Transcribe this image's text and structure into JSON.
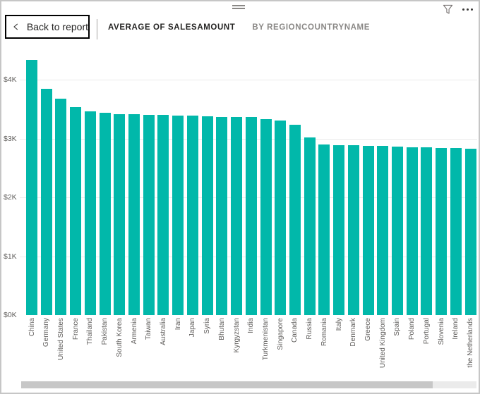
{
  "header": {
    "back_button_label": "Back to report",
    "title_primary": "AVERAGE OF SALESAMOUNT",
    "title_secondary": "BY REGIONCOUNTRYNAME"
  },
  "icons": {
    "drag_handle": "drag-handle-icon",
    "filter": "filter-icon",
    "more_options": "more-options-icon",
    "back_chevron": "chevron-left-icon"
  },
  "colors": {
    "bar": "#01B8AA",
    "axis_text": "#605E5C",
    "gridline": "#EBEBEB",
    "title_primary_text": "#252423",
    "title_secondary_text": "#8A8886",
    "back_button_border": "#000000",
    "scrollbar_thumb": "#C7C7C7",
    "scrollbar_track": "#EBEBEB"
  },
  "chart_data": {
    "type": "bar",
    "title": "AVERAGE OF SALESAMOUNT BY REGIONCOUNTRYNAME",
    "categories": [
      "China",
      "Germany",
      "United States",
      "France",
      "Thailand",
      "Pakistan",
      "South Korea",
      "Armenia",
      "Taiwan",
      "Australia",
      "Iran",
      "Japan",
      "Syria",
      "Bhutan",
      "Kyrgyzstan",
      "India",
      "Turkmenistan",
      "Singapore",
      "Canada",
      "Russia",
      "Romania",
      "Italy",
      "Denmark",
      "Greece",
      "United Kingdom",
      "Spain",
      "Poland",
      "Portugal",
      "Slovenia",
      "Ireland",
      "the Netherlands"
    ],
    "values": [
      4330,
      3845,
      3675,
      3530,
      3460,
      3435,
      3415,
      3410,
      3405,
      3405,
      3395,
      3385,
      3375,
      3370,
      3365,
      3360,
      3335,
      3305,
      3235,
      3020,
      2900,
      2890,
      2882,
      2878,
      2870,
      2862,
      2852,
      2845,
      2840,
      2836,
      2825
    ],
    "xlabel": "",
    "ylabel": "",
    "ylim": [
      0,
      4600
    ],
    "ytick_labels": [
      "$0K",
      "$1K",
      "$2K",
      "$3K",
      "$4K"
    ],
    "ytick_values": [
      0,
      1000,
      2000,
      3000,
      4000
    ],
    "grid": true,
    "legend": false,
    "bar_color": "#01B8AA"
  },
  "scrollbar": {
    "orientation": "horizontal"
  }
}
